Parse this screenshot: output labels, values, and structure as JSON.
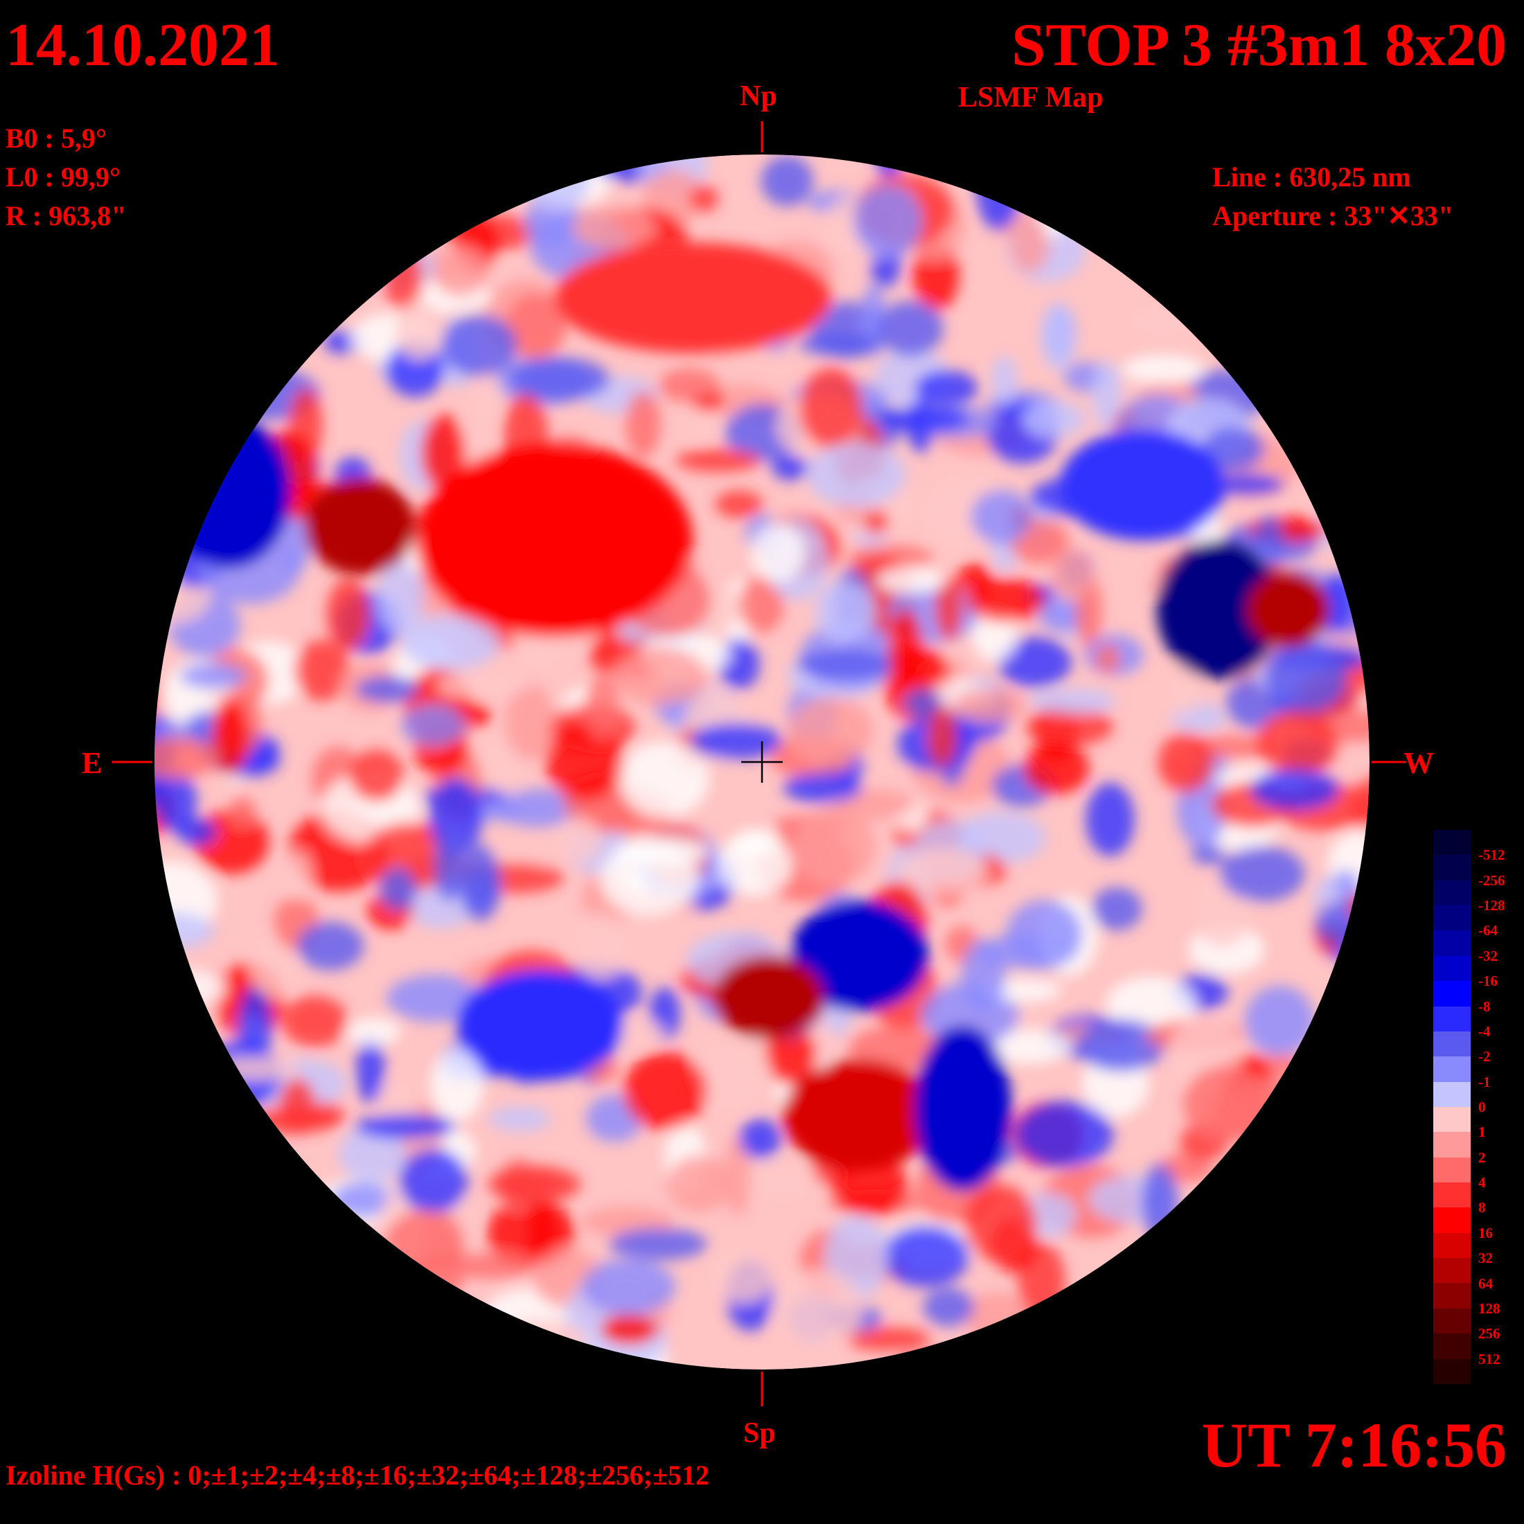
{
  "header": {
    "date": "14.10.2021",
    "observation": "STOP 3 #3m1 8x20",
    "map_type": "LSMF  Map"
  },
  "ephemeris": {
    "b0": "B0 : 5,9°",
    "l0": "L0 : 99,9°",
    "radius": "R  : 963,8\""
  },
  "instrument": {
    "line": "Line :  630,25 nm",
    "aperture": "Aperture : 33\"✕33\""
  },
  "orientation": {
    "north": "Np",
    "south": "Sp",
    "east": "E",
    "west": "W"
  },
  "time": "UT 7:16:56",
  "isolines": "Izoline H(Gs) : 0;±1;±2;±4;±8;±16;±32;±64;±128;±256;±512",
  "colorscale": {
    "labels": [
      "-512",
      "-256",
      "-128",
      "-64",
      "-32",
      "-16",
      "-8",
      "-4",
      "-2",
      "-1",
      "0",
      "1",
      "2",
      "4",
      "8",
      "16",
      "32",
      "64",
      "128",
      "256",
      "512"
    ],
    "colors": [
      "#000033",
      "#00004d",
      "#000066",
      "#000080",
      "#0000a6",
      "#0000cc",
      "#0000ff",
      "#2a2aff",
      "#5a5af0",
      "#8a8aff",
      "#c4c4ff",
      "#ffc8c8",
      "#ff9a9a",
      "#ff6b6b",
      "#ff3030",
      "#ff0000",
      "#d90000",
      "#b30000",
      "#8c0000",
      "#660000",
      "#400000",
      "#260000"
    ]
  }
}
